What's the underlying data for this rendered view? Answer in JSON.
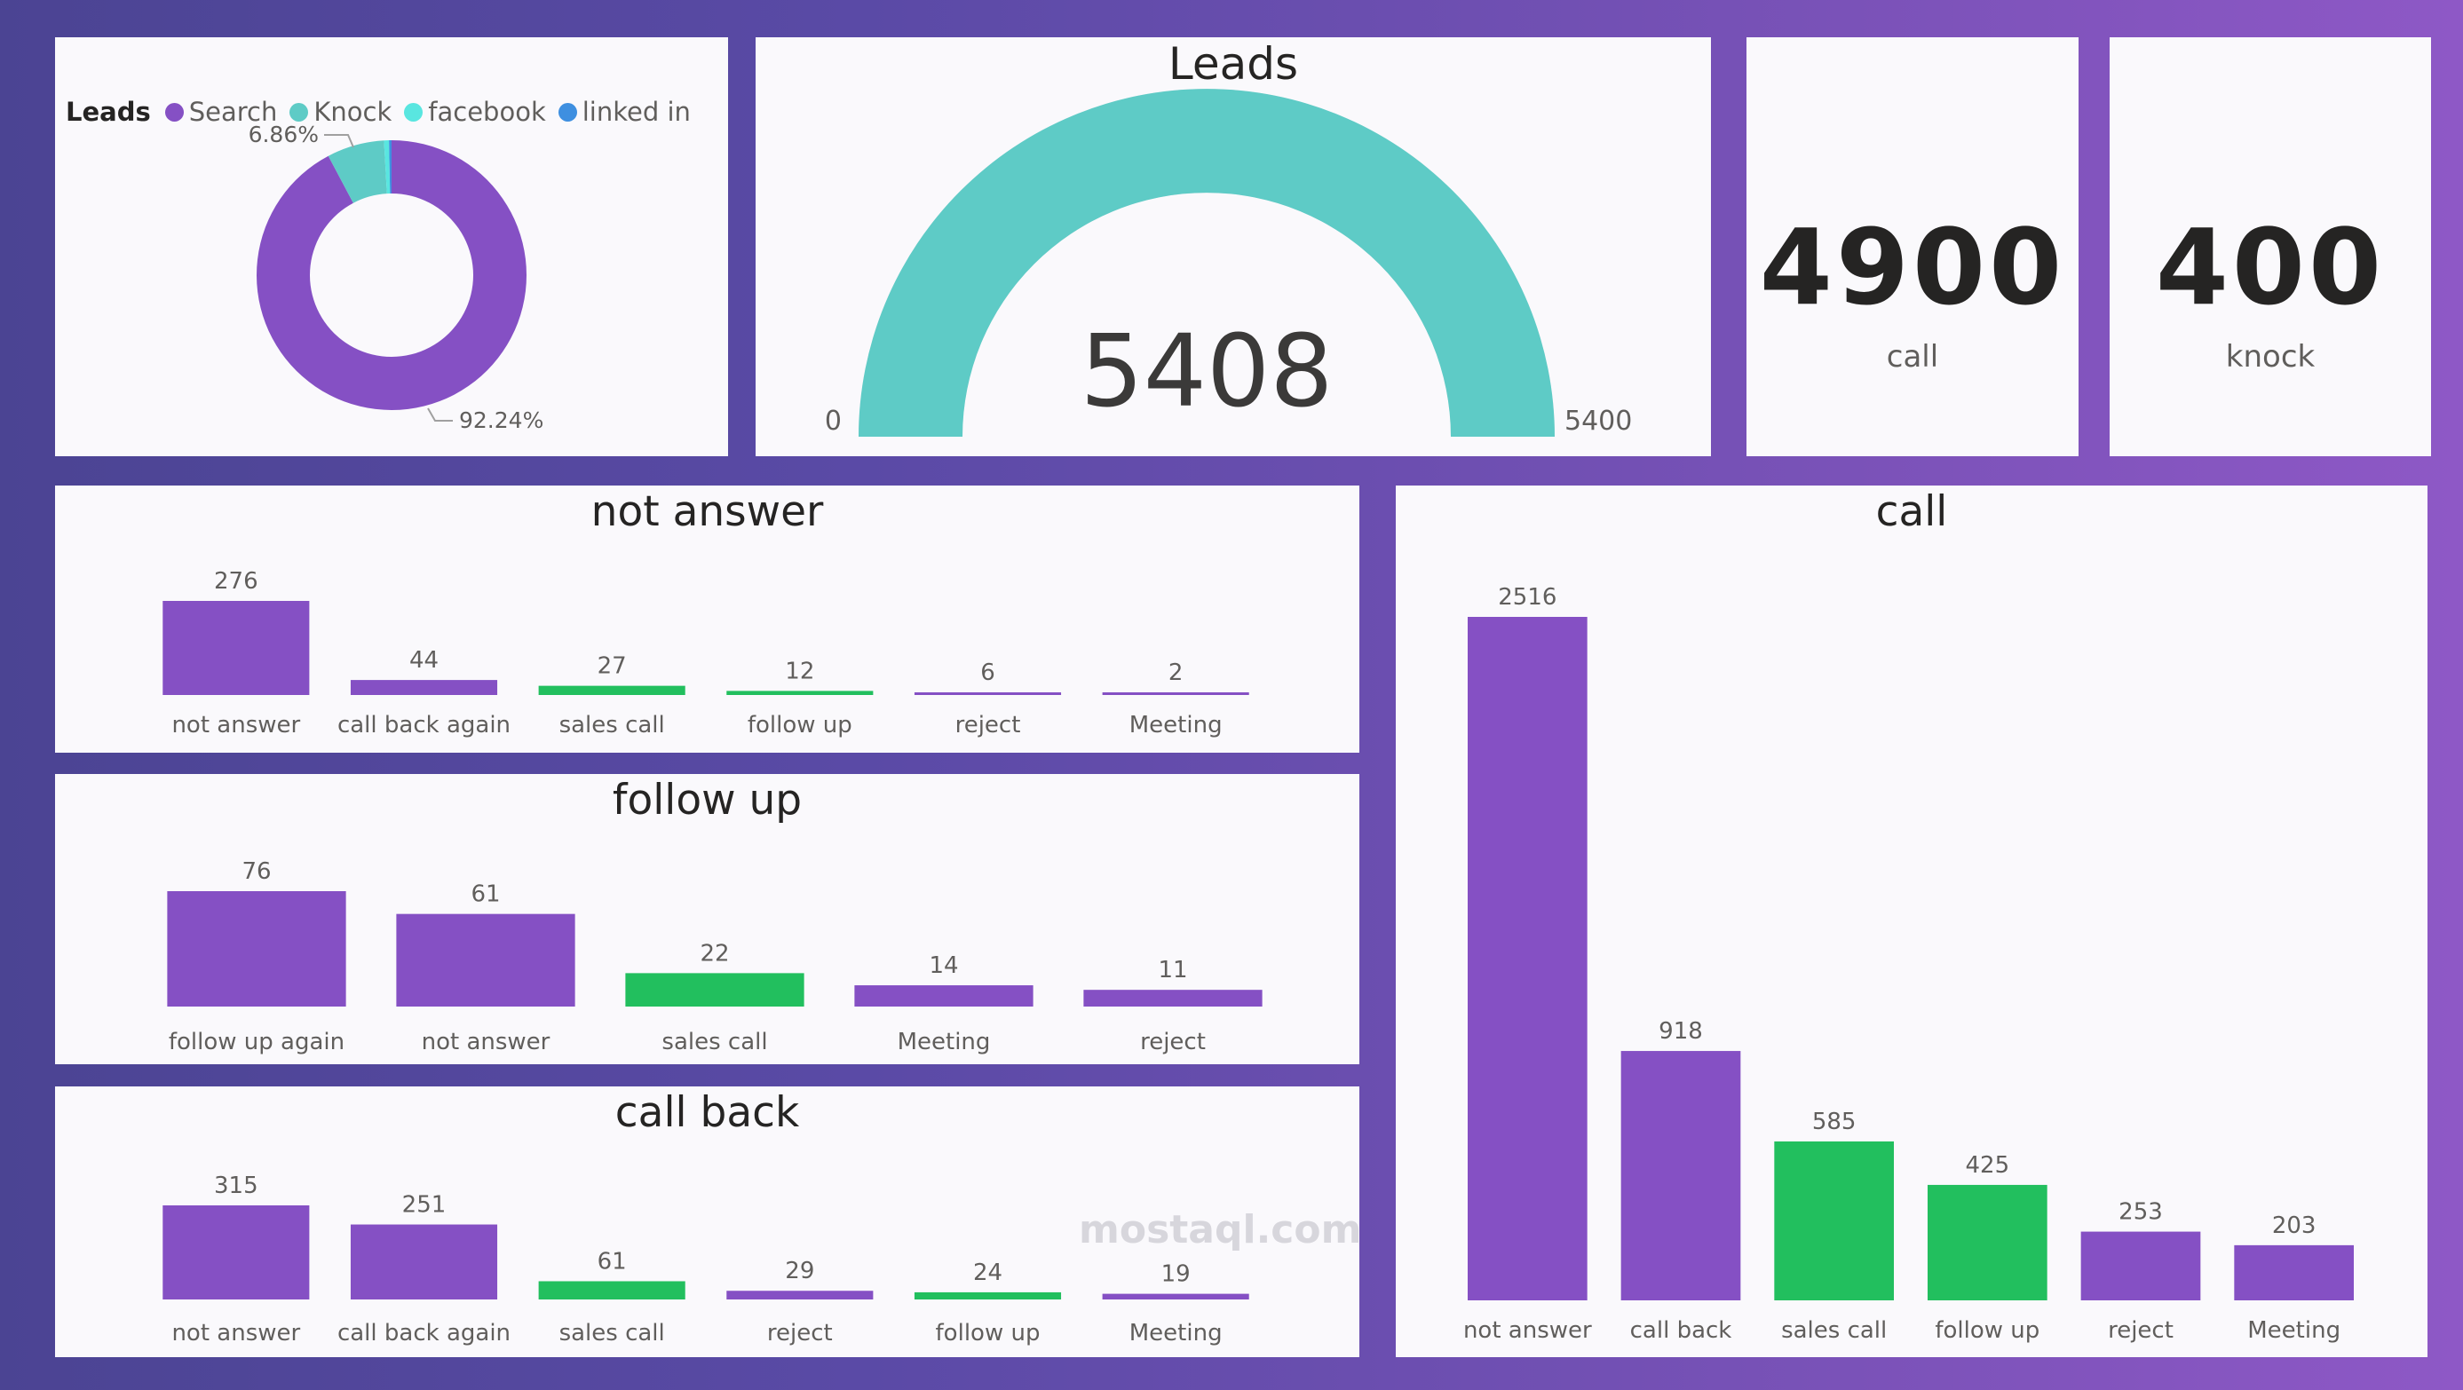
{
  "colors": {
    "purple": "#8550c4",
    "green": "#22bf5e",
    "teal": "#5ecbc6",
    "light_teal": "#59e6e0",
    "blue": "#3e8fe0"
  },
  "donut": {
    "legend_title": "Leads",
    "legend": [
      {
        "name": "Search",
        "color": "#8550c4"
      },
      {
        "name": "Knock",
        "color": "#5ecbc6"
      },
      {
        "name": "facebook",
        "color": "#59e6e0"
      },
      {
        "name": "linked in",
        "color": "#3e8fe0"
      }
    ],
    "labels": {
      "knock_pct": "6.86%",
      "search_pct": "92.24%"
    }
  },
  "gauge": {
    "title": "Leads",
    "value": "5408",
    "min": "0",
    "max": "5400"
  },
  "kpi_call": {
    "value": "4900",
    "label": "call"
  },
  "kpi_knock": {
    "value": "400",
    "label": "knock"
  },
  "bar_titles": {
    "not_answer": "not answer",
    "follow_up": "follow up",
    "call_back": "call back",
    "call": "call"
  },
  "watermark": "mostaql.com",
  "chart_data": [
    {
      "type": "pie",
      "title": "Leads",
      "legend_position": "top-left",
      "series": [
        {
          "name": "Search",
          "value": 92.24
        },
        {
          "name": "Knock",
          "value": 6.86
        },
        {
          "name": "facebook",
          "value": 0.6
        },
        {
          "name": "linked in",
          "value": 0.3
        }
      ]
    },
    {
      "type": "gauge",
      "title": "Leads",
      "value": 5408,
      "min": 0,
      "max": 5400
    },
    {
      "type": "bar",
      "title": "not answer",
      "categories": [
        "not answer",
        "call back again",
        "sales call",
        "follow up",
        "reject",
        "Meeting"
      ],
      "values": [
        276,
        44,
        27,
        12,
        6,
        2
      ],
      "colors": [
        "purple",
        "purple",
        "green",
        "green",
        "purple",
        "purple"
      ]
    },
    {
      "type": "bar",
      "title": "follow up",
      "categories": [
        "follow up again",
        "not answer",
        "sales call",
        "Meeting",
        "reject"
      ],
      "values": [
        76,
        61,
        22,
        14,
        11
      ],
      "colors": [
        "purple",
        "purple",
        "green",
        "purple",
        "purple"
      ]
    },
    {
      "type": "bar",
      "title": "call back",
      "categories": [
        "not answer",
        "call back again",
        "sales call",
        "reject",
        "follow up",
        "Meeting"
      ],
      "values": [
        315,
        251,
        61,
        29,
        24,
        19
      ],
      "colors": [
        "purple",
        "purple",
        "green",
        "purple",
        "green",
        "purple"
      ]
    },
    {
      "type": "bar",
      "title": "call",
      "categories": [
        "not answer",
        "call back",
        "sales call",
        "follow up",
        "reject",
        "Meeting"
      ],
      "values": [
        2516,
        918,
        585,
        425,
        253,
        203
      ],
      "colors": [
        "purple",
        "purple",
        "green",
        "green",
        "purple",
        "purple"
      ]
    }
  ]
}
